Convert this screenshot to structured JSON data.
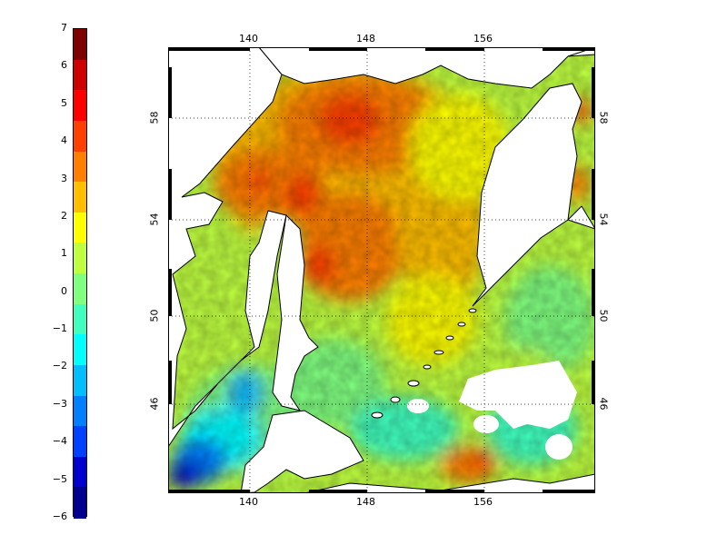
{
  "colorbar": {
    "ticks": [
      "7",
      "6",
      "5",
      "4",
      "3",
      "2",
      "1",
      "0",
      "−1",
      "−2",
      "−3",
      "−4",
      "−5",
      "−6"
    ],
    "min": -6,
    "max": 7,
    "colors": [
      "#00008f",
      "#0000cf",
      "#0040ff",
      "#0080ff",
      "#00bfff",
      "#00ffff",
      "#40ffbf",
      "#80ff80",
      "#bfff40",
      "#ffff00",
      "#ffbf00",
      "#ff8000",
      "#ff4000",
      "#ff0000",
      "#cf0000",
      "#800000"
    ]
  },
  "map": {
    "lon_ticks": [
      "140",
      "148",
      "156"
    ],
    "lat_ticks": [
      "58",
      "54",
      "50",
      "46"
    ],
    "lon_range": [
      135,
      164
    ],
    "lat_range": [
      42,
      60
    ],
    "grid": true,
    "colormap": "jet",
    "land_color": "#ffffff",
    "coast_color": "#000000"
  }
}
